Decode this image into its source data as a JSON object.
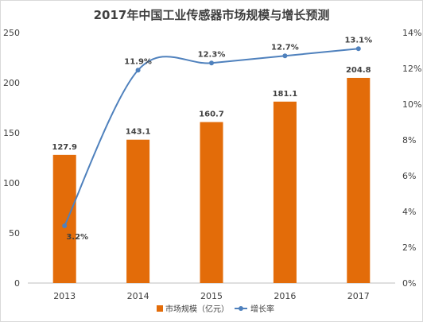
{
  "chart_data": {
    "type": "bar",
    "title": "2017年中国工业传感器市场规模与增长预测",
    "categories": [
      "2013",
      "2014",
      "2015",
      "2016",
      "2017"
    ],
    "series": [
      {
        "name": "市场规模（亿元）",
        "type": "bar",
        "axis": "left",
        "color": "#E36C09",
        "values": [
          127.9,
          143.1,
          160.7,
          181.1,
          204.8
        ],
        "labels": [
          "127.9",
          "143.1",
          "160.7",
          "181.1",
          "204.8"
        ]
      },
      {
        "name": "增长率",
        "type": "line",
        "axis": "right",
        "color": "#4F81BD",
        "smooth": true,
        "values": [
          3.2,
          11.9,
          12.3,
          12.7,
          13.1
        ],
        "labels": [
          "3.2%",
          "11.9%",
          "12.3%",
          "12.7%",
          "13.1%"
        ]
      }
    ],
    "y_left": {
      "min": 0,
      "max": 250,
      "step": 50,
      "ticks": [
        "0",
        "50",
        "100",
        "150",
        "200",
        "250"
      ]
    },
    "y_right": {
      "min": 0,
      "max": 14,
      "step": 2,
      "ticks": [
        "0%",
        "2%",
        "4%",
        "6%",
        "8%",
        "10%",
        "12%",
        "14%"
      ]
    },
    "grid": false,
    "legend_position": "bottom"
  }
}
